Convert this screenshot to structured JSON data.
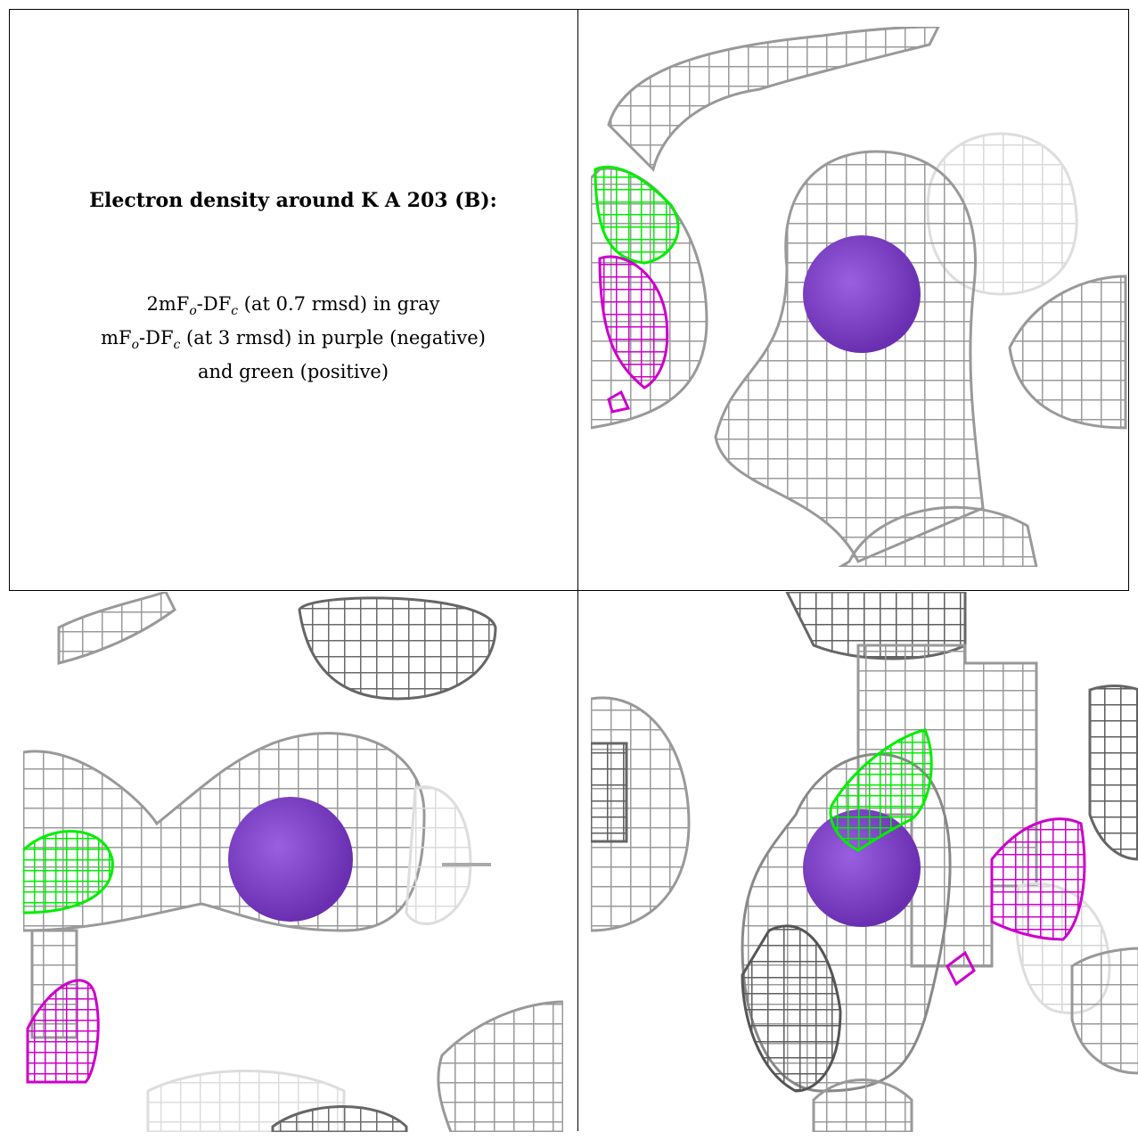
{
  "caption": {
    "title": "Electron density around K A 203 (B):",
    "line1_a": "2mF",
    "line1_sub_o": "o",
    "line1_b": "-DF",
    "line1_sub_c": "c",
    "line1_c": " (at 0.7 rmsd) in gray",
    "line2_a": "mF",
    "line2_sub_o": "o",
    "line2_b": "-DF",
    "line2_sub_c": "c",
    "line2_c": " (at 3 rmsd) in purple (negative)",
    "line3": "and green (positive)"
  },
  "colors": {
    "density_2fofc": "#a0a0a0",
    "density_negative": "#cc00cc",
    "density_positive": "#00ee00",
    "ion": "#7a3fc0"
  },
  "views": [
    {
      "name": "view-top-right"
    },
    {
      "name": "view-bottom-left"
    },
    {
      "name": "view-bottom-right"
    }
  ]
}
